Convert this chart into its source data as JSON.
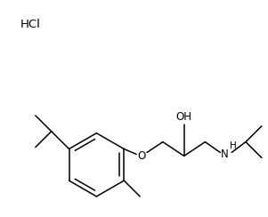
{
  "background_color": "#ffffff",
  "text_color": "#000000",
  "hcl_label": "HCl",
  "oh_label": "OH",
  "nh_label": "H",
  "o_label": "O",
  "n_label": "N",
  "font_size": 8.5,
  "lw": 1.1
}
